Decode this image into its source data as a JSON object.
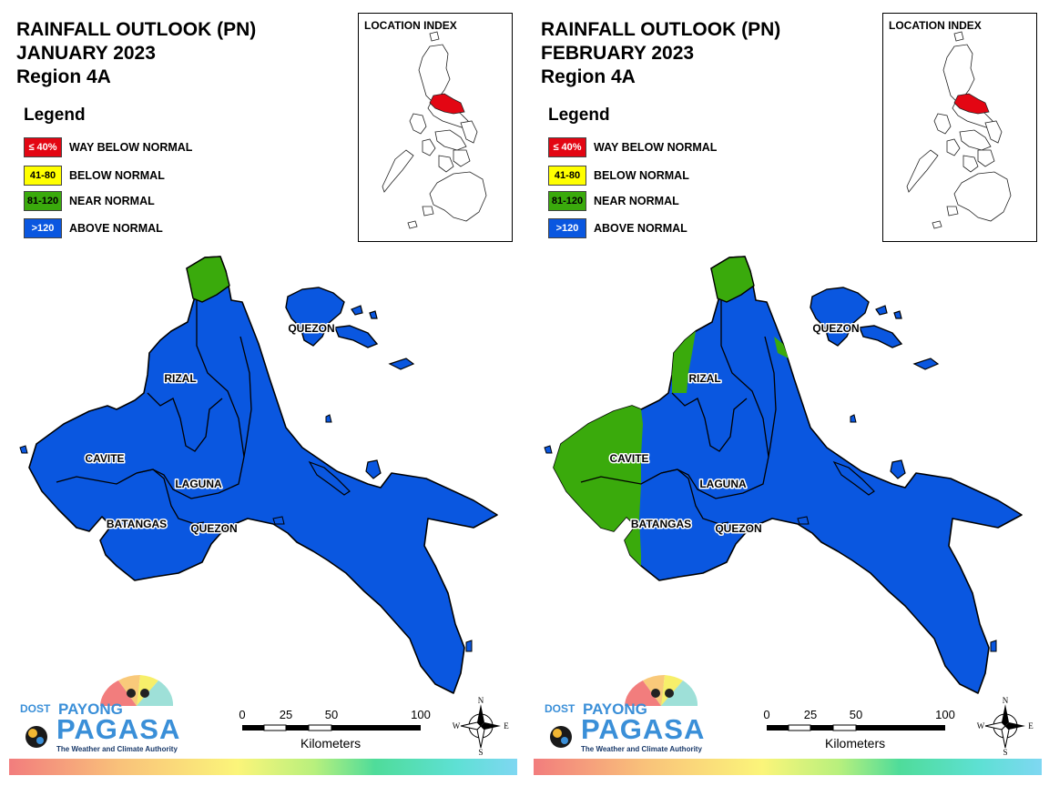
{
  "colors": {
    "way_below": "#e30613",
    "below": "#ffff00",
    "near": "#3aaa0c",
    "above": "#0a57e0"
  },
  "legend": {
    "title": "Legend",
    "items": [
      {
        "box": "≤ 40%",
        "label": "WAY BELOW NORMAL",
        "color": "#e30613",
        "text_color": "#ffffff"
      },
      {
        "box": "41-80",
        "label": "BELOW NORMAL",
        "color": "#ffff00",
        "text_color": "#000000"
      },
      {
        "box": "81-120",
        "label": "NEAR NORMAL",
        "color": "#3aaa0c",
        "text_color": "#000000"
      },
      {
        "box": ">120",
        "label": "ABOVE NORMAL",
        "color": "#0a57e0",
        "text_color": "#ffffff"
      }
    ]
  },
  "location_index": "LOCATION INDEX",
  "regions": {
    "rizal": "RIZAL",
    "cavite": "CAVITE",
    "laguna": "LAGUNA",
    "batangas": "BATANGAS",
    "quezon": "QUEZON"
  },
  "scale": {
    "ticks": [
      "0",
      "25",
      "50",
      "100"
    ],
    "unit": "Kilometers"
  },
  "compass": {
    "n": "N",
    "s": "S",
    "e": "E",
    "w": "W"
  },
  "logo": {
    "dost": "DOST",
    "payong": "PAYONG",
    "pagasa": "PAGASA",
    "tagline": "The Weather and Climate Authority"
  },
  "panels": [
    {
      "title": [
        "RAINFALL OUTLOOK (PN)",
        "JANUARY 2023",
        "Region 4A"
      ],
      "green_zones": [
        "north-tip"
      ]
    },
    {
      "title": [
        "RAINFALL OUTLOOK (PN)",
        "FEBRUARY 2023",
        "Region 4A"
      ],
      "green_zones": [
        "north-tip",
        "rizal-west",
        "east-coast",
        "cavite-batangas-west"
      ]
    }
  ]
}
